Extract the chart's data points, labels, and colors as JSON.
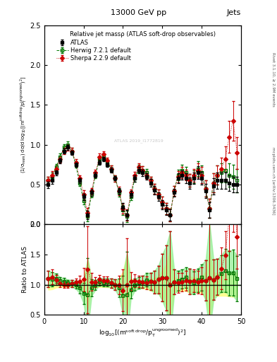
{
  "title_top": "13000 GeV pp",
  "title_right": "Jets",
  "plot_title": "Relative jet massρ (ATLAS soft-drop observables)",
  "ylabel_main": "(1/σ$_{\\mathrm{resm}}$) dσ/d log$_{10}$[(m$^{\\mathrm{soft drop}}$/p$_\\mathrm{T}^{\\mathrm{ungroomed}}$)$^2$]",
  "ylabel_ratio": "Ratio to ATLAS",
  "side_label_top": "Rivet 3.1.10, ≥ 2.9M events",
  "side_label_bot": "mcplots.cern.ch [arXiv:1306.3436]",
  "watermark": "ATLAS 2019_I1772819",
  "xmin": 0,
  "xmax": 50,
  "ymin_main": 0,
  "ymax_main": 2.5,
  "ymin_ratio": 0.5,
  "ymax_ratio": 2.0,
  "xticks": [
    0,
    10,
    20,
    30,
    40,
    50
  ],
  "yticks_main": [
    0,
    0.5,
    1.0,
    1.5,
    2.0,
    2.5
  ],
  "yticks_ratio": [
    0.5,
    1.0,
    1.5,
    2.0
  ],
  "atlas_color": "#000000",
  "herwig_color": "#007700",
  "sherpa_color": "#cc0000",
  "herwig_band_color": "#90ee90",
  "sherpa_band_color": "#ffff88",
  "atlas_x": [
    1,
    2,
    3,
    4,
    5,
    6,
    7,
    8,
    9,
    10,
    11,
    12,
    13,
    14,
    15,
    16,
    17,
    18,
    19,
    20,
    21,
    22,
    23,
    24,
    25,
    26,
    27,
    28,
    29,
    30,
    31,
    32,
    33,
    34,
    35,
    36,
    37,
    38,
    39,
    40,
    41,
    42,
    43,
    44,
    45,
    46,
    47,
    48,
    49
  ],
  "atlas_y": [
    0.5,
    0.55,
    0.65,
    0.8,
    0.92,
    0.97,
    0.9,
    0.75,
    0.55,
    0.35,
    0.12,
    0.4,
    0.62,
    0.78,
    0.82,
    0.75,
    0.68,
    0.58,
    0.42,
    0.22,
    0.12,
    0.38,
    0.58,
    0.68,
    0.65,
    0.6,
    0.52,
    0.43,
    0.35,
    0.25,
    0.18,
    0.12,
    0.4,
    0.58,
    0.62,
    0.58,
    0.52,
    0.58,
    0.65,
    0.58,
    0.42,
    0.18,
    0.48,
    0.55,
    0.55,
    0.55,
    0.52,
    0.5,
    0.5
  ],
  "atlas_yerr": [
    0.04,
    0.04,
    0.03,
    0.03,
    0.03,
    0.03,
    0.03,
    0.03,
    0.03,
    0.04,
    0.05,
    0.04,
    0.03,
    0.03,
    0.03,
    0.03,
    0.03,
    0.03,
    0.04,
    0.05,
    0.06,
    0.04,
    0.04,
    0.04,
    0.04,
    0.04,
    0.05,
    0.05,
    0.05,
    0.06,
    0.06,
    0.07,
    0.05,
    0.06,
    0.06,
    0.06,
    0.07,
    0.07,
    0.08,
    0.08,
    0.09,
    0.1,
    0.1,
    0.1,
    0.1,
    0.1,
    0.1,
    0.1,
    0.1
  ],
  "herwig_x": [
    1,
    2,
    3,
    4,
    5,
    6,
    7,
    8,
    9,
    10,
    11,
    12,
    13,
    14,
    15,
    16,
    17,
    18,
    19,
    20,
    21,
    22,
    23,
    24,
    25,
    26,
    27,
    28,
    29,
    30,
    31,
    32,
    33,
    34,
    35,
    36,
    37,
    38,
    39,
    40,
    41,
    42,
    43,
    44,
    45,
    46,
    47,
    48,
    49
  ],
  "herwig_y": [
    0.55,
    0.6,
    0.72,
    0.85,
    0.97,
    1.0,
    0.92,
    0.75,
    0.52,
    0.3,
    0.1,
    0.38,
    0.62,
    0.82,
    0.85,
    0.78,
    0.7,
    0.58,
    0.4,
    0.18,
    0.1,
    0.35,
    0.58,
    0.7,
    0.68,
    0.65,
    0.55,
    0.45,
    0.38,
    0.28,
    0.2,
    0.12,
    0.42,
    0.62,
    0.68,
    0.65,
    0.55,
    0.6,
    0.7,
    0.65,
    0.45,
    0.2,
    0.52,
    0.62,
    0.65,
    0.68,
    0.62,
    0.6,
    0.55
  ],
  "herwig_yerr": [
    0.05,
    0.05,
    0.04,
    0.04,
    0.04,
    0.04,
    0.04,
    0.04,
    0.04,
    0.05,
    0.06,
    0.04,
    0.04,
    0.04,
    0.04,
    0.04,
    0.04,
    0.04,
    0.05,
    0.06,
    0.07,
    0.04,
    0.04,
    0.05,
    0.05,
    0.05,
    0.05,
    0.06,
    0.06,
    0.07,
    0.07,
    0.08,
    0.06,
    0.07,
    0.07,
    0.07,
    0.08,
    0.08,
    0.09,
    0.09,
    0.1,
    0.12,
    0.12,
    0.12,
    0.12,
    0.15,
    0.15,
    0.15,
    0.15
  ],
  "sherpa_x": [
    1,
    2,
    3,
    4,
    5,
    6,
    7,
    8,
    9,
    10,
    11,
    12,
    13,
    14,
    15,
    16,
    17,
    18,
    19,
    20,
    21,
    22,
    23,
    24,
    25,
    26,
    27,
    28,
    29,
    30,
    31,
    32,
    33,
    34,
    35,
    36,
    37,
    38,
    39,
    40,
    41,
    42,
    43,
    44,
    45,
    46,
    47,
    48,
    49
  ],
  "sherpa_y": [
    0.55,
    0.62,
    0.7,
    0.82,
    0.92,
    0.97,
    0.92,
    0.78,
    0.58,
    0.38,
    0.15,
    0.42,
    0.65,
    0.85,
    0.88,
    0.8,
    0.7,
    0.58,
    0.42,
    0.2,
    0.12,
    0.4,
    0.62,
    0.72,
    0.68,
    0.62,
    0.55,
    0.45,
    0.38,
    0.28,
    0.2,
    0.12,
    0.42,
    0.6,
    0.65,
    0.62,
    0.55,
    0.62,
    0.68,
    0.62,
    0.45,
    0.2,
    0.52,
    0.62,
    0.7,
    0.82,
    1.1,
    1.3,
    0.9
  ],
  "sherpa_yerr": [
    0.05,
    0.05,
    0.04,
    0.04,
    0.04,
    0.04,
    0.04,
    0.04,
    0.04,
    0.05,
    0.06,
    0.04,
    0.04,
    0.04,
    0.04,
    0.04,
    0.04,
    0.04,
    0.05,
    0.06,
    0.07,
    0.04,
    0.04,
    0.05,
    0.05,
    0.05,
    0.05,
    0.06,
    0.06,
    0.07,
    0.07,
    0.08,
    0.06,
    0.07,
    0.07,
    0.07,
    0.08,
    0.08,
    0.09,
    0.1,
    0.1,
    0.12,
    0.12,
    0.12,
    0.14,
    0.16,
    0.2,
    0.25,
    0.2
  ]
}
